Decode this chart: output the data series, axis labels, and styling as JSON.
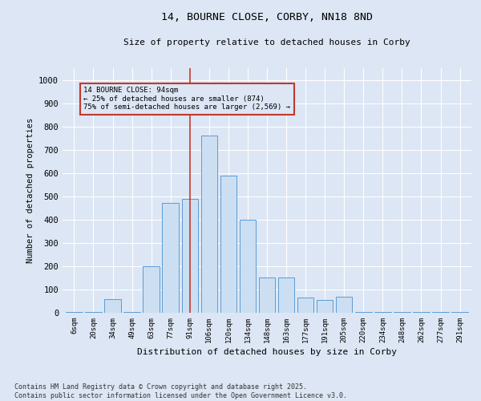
{
  "title_line1": "14, BOURNE CLOSE, CORBY, NN18 8ND",
  "title_line2": "Size of property relative to detached houses in Corby",
  "xlabel": "Distribution of detached houses by size in Corby",
  "ylabel": "Number of detached properties",
  "bar_labels": [
    "6sqm",
    "20sqm",
    "34sqm",
    "49sqm",
    "63sqm",
    "77sqm",
    "91sqm",
    "106sqm",
    "120sqm",
    "134sqm",
    "148sqm",
    "163sqm",
    "177sqm",
    "191sqm",
    "205sqm",
    "220sqm",
    "234sqm",
    "248sqm",
    "262sqm",
    "277sqm",
    "291sqm"
  ],
  "bar_values": [
    5,
    5,
    60,
    5,
    200,
    470,
    490,
    760,
    590,
    400,
    150,
    150,
    65,
    55,
    70,
    5,
    5,
    5,
    5,
    5,
    5
  ],
  "bar_color": "#ccdff2",
  "bar_edge_color": "#5b9bd5",
  "annotation_box_text": "14 BOURNE CLOSE: 94sqm\n← 25% of detached houses are smaller (874)\n75% of semi-detached houses are larger (2,569) →",
  "vline_x_idx": 6,
  "vline_color": "#c0392b",
  "annotation_box_color": "#c0392b",
  "ylim": [
    0,
    1050
  ],
  "yticks": [
    0,
    100,
    200,
    300,
    400,
    500,
    600,
    700,
    800,
    900,
    1000
  ],
  "background_color": "#dce6f4",
  "grid_color": "#ffffff",
  "footnote": "Contains HM Land Registry data © Crown copyright and database right 2025.\nContains public sector information licensed under the Open Government Licence v3.0."
}
